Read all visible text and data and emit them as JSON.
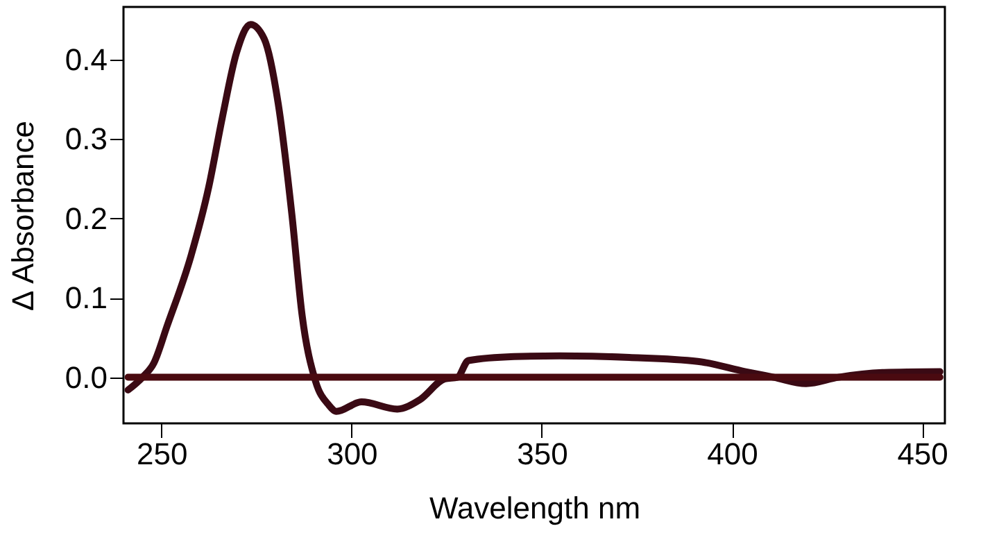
{
  "chart_data": {
    "type": "line",
    "xlabel": "Wavelength nm",
    "ylabel": "Δ Absorbance",
    "xlim": [
      240,
      456
    ],
    "xticks": [
      250,
      300,
      350,
      400,
      450
    ],
    "ylim": [
      -0.058,
      0.466
    ],
    "yticks": [
      {
        "value": 0,
        "label": "0.0"
      },
      0.1,
      0.2,
      0.3,
      0.4
    ],
    "grid": false,
    "legend": false,
    "marker": "none",
    "line_style": "solid",
    "series": [
      {
        "color": "#3a0a14",
        "x": [
          241.2,
          245,
          248,
          251.5,
          257.7,
          262.4,
          266,
          269.7,
          273.4,
          277,
          280.7,
          284.3,
          287,
          290.5,
          294,
          296,
          302.6,
          312,
          318,
          324.5,
          327.8,
          330.7,
          342.7,
          354.7,
          373,
          391,
          403.6,
          411,
          419.5,
          428,
          440,
          454.7
        ],
        "values": [
          -0.016,
          0.0,
          0.018,
          0.065,
          0.152,
          0.239,
          0.327,
          0.408,
          0.444,
          0.426,
          0.344,
          0.204,
          0.077,
          -0.005,
          -0.035,
          -0.043,
          -0.031,
          -0.04,
          -0.028,
          -0.002,
          0.0,
          0.021,
          0.026,
          0.027,
          0.025,
          0.02,
          0.007,
          0.0,
          -0.008,
          0.0,
          0.006,
          0.007
        ]
      },
      {
        "color": "#4a0a10",
        "x": [
          241.2,
          454.7
        ],
        "values": [
          0.0,
          0.0
        ]
      }
    ]
  }
}
